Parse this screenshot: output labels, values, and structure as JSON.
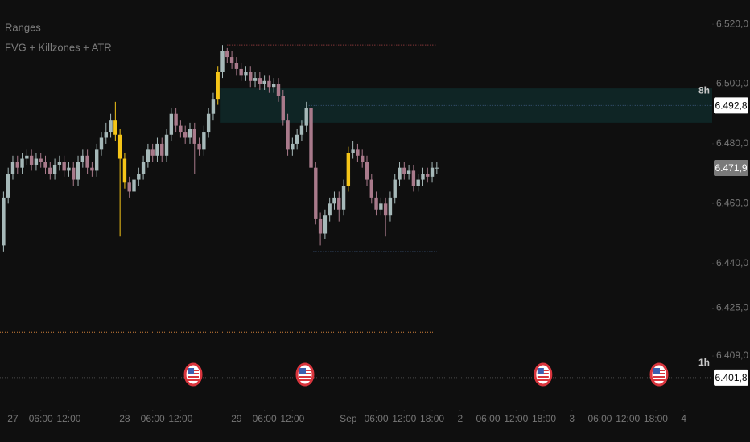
{
  "chart_data": {
    "type": "candlestick",
    "indicators": [
      "Ranges",
      "FVG + Killzones + ATR"
    ],
    "x": [
      -2,
      -1,
      0,
      1,
      2,
      3,
      4,
      5,
      6,
      7,
      8,
      9,
      10,
      11,
      12,
      13,
      14,
      15,
      16,
      17,
      18,
      19,
      20,
      21,
      22,
      23,
      24,
      25,
      26,
      27,
      28,
      29,
      30,
      31,
      32,
      33,
      34,
      35,
      36,
      37,
      38,
      39,
      40,
      41,
      42,
      43,
      44,
      45,
      46,
      47,
      48,
      49,
      50,
      51,
      52,
      53,
      54,
      55,
      56,
      57,
      58,
      59,
      60,
      61,
      62,
      63,
      64,
      65,
      66,
      67,
      68,
      69,
      70,
      71,
      72,
      73,
      74,
      75,
      76,
      77,
      78,
      79,
      80,
      81,
      82,
      83,
      84,
      85,
      86,
      87,
      88,
      89,
      90,
      91
    ],
    "open": [
      6446,
      6462,
      6470,
      6474,
      6472,
      6475,
      6476,
      6473,
      6475,
      6474,
      6472,
      6470,
      6473,
      6474,
      6471,
      6472,
      6468,
      6474,
      6476,
      6472,
      6471,
      6478,
      6482,
      6484,
      6488,
      6483,
      6475,
      6467,
      6464,
      6468,
      6470,
      6474,
      6478,
      6476,
      6480,
      6476,
      6483,
      6490,
      6486,
      6484,
      6482,
      6485,
      6480,
      6478,
      6484,
      6490,
      6495,
      6504,
      6511,
      6509,
      6507,
      6505,
      6503,
      6504,
      6501,
      6502,
      6500,
      6501,
      6499,
      6500,
      6496,
      6488,
      6478,
      6480,
      6483,
      6486,
      6492,
      6472,
      6455,
      6450,
      6456,
      6460,
      6462,
      6458,
      6466,
      6477,
      6478,
      6476,
      6474,
      6468,
      6462,
      6458,
      6460,
      6456,
      6462,
      6468,
      6472,
      6470,
      6471,
      6466,
      6468,
      6470,
      6469,
      6472
    ],
    "high": [
      6464,
      6472,
      6476,
      6476,
      6477,
      6478,
      6478,
      6477,
      6477,
      6476,
      6474,
      6475,
      6476,
      6476,
      6474,
      6474,
      6476,
      6478,
      6478,
      6474,
      6480,
      6484,
      6487,
      6490,
      6494,
      6485,
      6477,
      6469,
      6470,
      6472,
      6476,
      6480,
      6480,
      6482,
      6482,
      6485,
      6492,
      6492,
      6488,
      6486,
      6487,
      6487,
      6482,
      6486,
      6492,
      6497,
      6506,
      6513,
      6512,
      6511,
      6509,
      6507,
      6506,
      6506,
      6504,
      6504,
      6503,
      6503,
      6502,
      6502,
      6498,
      6490,
      6482,
      6485,
      6488,
      6494,
      6494,
      6474,
      6457,
      6458,
      6462,
      6464,
      6464,
      6468,
      6479,
      6481,
      6480,
      6478,
      6476,
      6470,
      6464,
      6462,
      6462,
      6464,
      6470,
      6474,
      6474,
      6473,
      6473,
      6470,
      6472,
      6472,
      6474,
      6474
    ],
    "low": [
      6444,
      6460,
      6468,
      6470,
      6470,
      6473,
      6471,
      6471,
      6472,
      6470,
      6468,
      6468,
      6471,
      6469,
      6469,
      6466,
      6466,
      6472,
      6470,
      6469,
      6469,
      6476,
      6480,
      6482,
      6481,
      6449,
      6465,
      6462,
      6462,
      6466,
      6468,
      6472,
      6474,
      6474,
      6474,
      6474,
      6481,
      6484,
      6482,
      6480,
      6480,
      6470,
      6476,
      6476,
      6482,
      6488,
      6493,
      6502,
      6507,
      6505,
      6503,
      6501,
      6501,
      6499,
      6499,
      6498,
      6498,
      6497,
      6497,
      6494,
      6486,
      6476,
      6476,
      6478,
      6481,
      6484,
      6470,
      6453,
      6446,
      6448,
      6454,
      6458,
      6454,
      6456,
      6464,
      6475,
      6474,
      6472,
      6466,
      6460,
      6456,
      6456,
      6449,
      6454,
      6460,
      6466,
      6468,
      6468,
      6464,
      6464,
      6466,
      6467,
      6467,
      6470
    ],
    "close": [
      6462,
      6470,
      6474,
      6472,
      6475,
      6476,
      6473,
      6475,
      6474,
      6472,
      6470,
      6473,
      6474,
      6471,
      6472,
      6468,
      6474,
      6476,
      6472,
      6471,
      6478,
      6482,
      6484,
      6488,
      6483,
      6475,
      6467,
      6464,
      6468,
      6470,
      6474,
      6478,
      6476,
      6480,
      6476,
      6483,
      6490,
      6486,
      6484,
      6482,
      6485,
      6480,
      6478,
      6484,
      6490,
      6495,
      6504,
      6511,
      6509,
      6507,
      6505,
      6503,
      6504,
      6501,
      6502,
      6500,
      6501,
      6499,
      6500,
      6496,
      6488,
      6478,
      6480,
      6483,
      6486,
      6492,
      6472,
      6455,
      6450,
      6456,
      6460,
      6462,
      6458,
      6466,
      6477,
      6478,
      6476,
      6474,
      6468,
      6462,
      6458,
      6460,
      6456,
      6462,
      6468,
      6472,
      6470,
      6471,
      6466,
      6468,
      6470,
      6469,
      6472,
      6472
    ],
    "up_color": "#a6b9b9",
    "down_color": "#a97a8b",
    "highlight": {
      "color": "#f5c518",
      "x": [
        22,
        23,
        24,
        44,
        72
      ]
    },
    "xlim": [
      -2.76,
      150.1
    ],
    "xticks": [
      {
        "value": 0,
        "label": "27"
      },
      {
        "value": 6,
        "label": "06:00"
      },
      {
        "value": 12,
        "label": "12:00"
      },
      {
        "value": 24,
        "label": "28"
      },
      {
        "value": 30,
        "label": "06:00"
      },
      {
        "value": 36,
        "label": "12:00"
      },
      {
        "value": 48,
        "label": "29"
      },
      {
        "value": 54,
        "label": "06:00"
      },
      {
        "value": 60,
        "label": "12:00"
      },
      {
        "value": 72,
        "label": "Sep"
      },
      {
        "value": 78,
        "label": "06:00"
      },
      {
        "value": 84,
        "label": "12:00"
      },
      {
        "value": 90,
        "label": "18:00"
      },
      {
        "value": 96,
        "label": "2"
      },
      {
        "value": 102,
        "label": "06:00"
      },
      {
        "value": 108,
        "label": "12:00"
      },
      {
        "value": 114,
        "label": "18:00"
      },
      {
        "value": 120,
        "label": "3"
      },
      {
        "value": 126,
        "label": "06:00"
      },
      {
        "value": 132,
        "label": "12:00"
      },
      {
        "value": 138,
        "label": "18:00"
      },
      {
        "value": 144,
        "label": "4"
      }
    ],
    "ylim": [
      6391,
      6528.1
    ],
    "yticks": [
      {
        "value": 6520,
        "label": "6.520,0"
      },
      {
        "value": 6500,
        "label": "6.500,0"
      },
      {
        "value": 6480,
        "label": "6.480,0"
      },
      {
        "value": 6460,
        "label": "6.460,0"
      },
      {
        "value": 6440,
        "label": "6.440,0"
      },
      {
        "value": 6425,
        "label": "6.425,0"
      },
      {
        "value": 6409,
        "label": "6.409,0"
      }
    ],
    "zone": {
      "low": 6487,
      "high": 6498.5,
      "from": 44.6,
      "color": "#102828"
    },
    "levels": [
      {
        "price": 6513,
        "from": 46,
        "to": 91,
        "color": "#b5474a"
      },
      {
        "price": 6507,
        "from": 46,
        "to": 91,
        "color": "#3d5a80"
      },
      {
        "price": 6492.8,
        "from": 63,
        "color": "#3d5a80"
      },
      {
        "price": 6444,
        "from": 64.5,
        "to": 91,
        "color": "#3d5a80"
      },
      {
        "price": 6417,
        "to": 91,
        "color": "#d4823a"
      },
      {
        "price": 6401.8,
        "color": "#4a4a4a"
      }
    ],
    "price_labels": [
      {
        "value": 6492.8,
        "label": "6.492,8",
        "period": "8h",
        "background": "#ffffff",
        "color": "#000000"
      },
      {
        "value": 6471.9,
        "label": "6.471,9",
        "background": "#7a7a7a",
        "color": "#ffffff"
      },
      {
        "value": 6401.8,
        "label": "6.401,8",
        "period": "1h",
        "background": "#ffffff",
        "color": "#000000"
      }
    ],
    "events": {
      "x": [
        38.7,
        62.7,
        113.8,
        138.7
      ]
    }
  }
}
